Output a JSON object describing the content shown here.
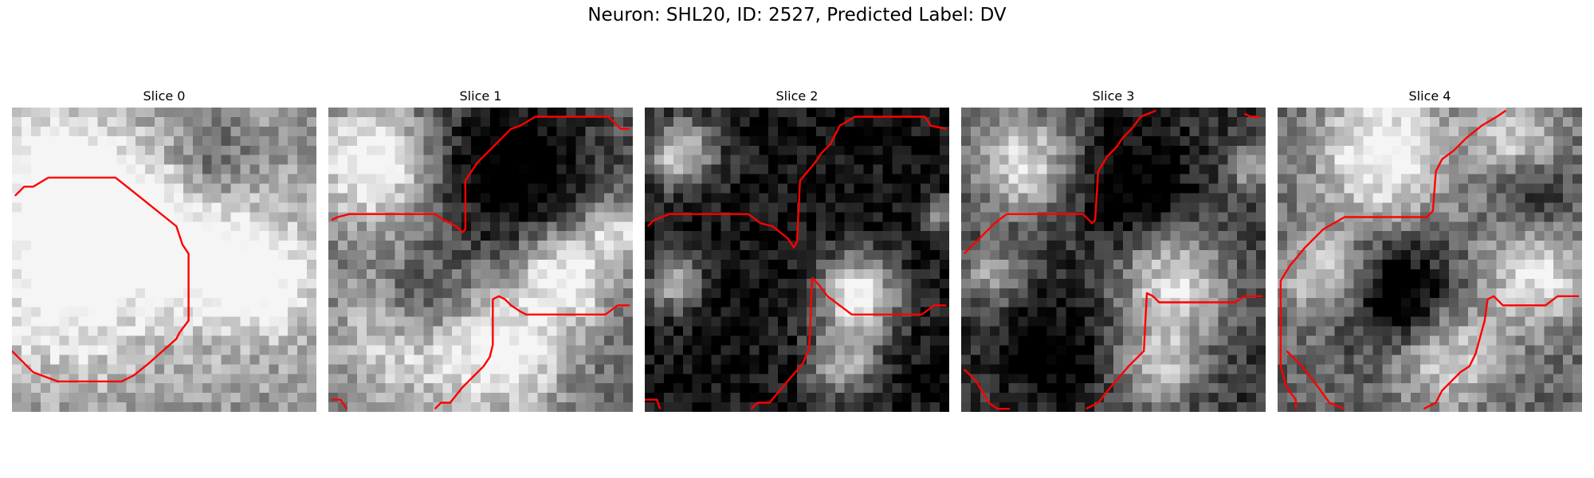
{
  "title": "Neuron: SHL20, ID: 2527, Predicted Label: DV",
  "outline_color": "#ff0000",
  "panels": [
    {
      "title": "Slice 0",
      "seed": 11,
      "bright_blobs": [
        [
          0.2,
          0.55,
          0.3,
          0.55
        ],
        [
          0.45,
          0.4,
          0.25,
          0.5
        ],
        [
          0.8,
          0.55,
          0.2,
          0.55
        ],
        [
          0.15,
          0.2,
          0.2,
          0.45
        ]
      ],
      "dark_blobs": [
        [
          0.65,
          0.18,
          0.14,
          0.3
        ],
        [
          0.35,
          0.65,
          0.12,
          0.18
        ]
      ],
      "base": 0.62,
      "polylines": [
        [
          [
            0.01,
            0.29
          ],
          [
            0.04,
            0.26
          ],
          [
            0.07,
            0.26
          ],
          [
            0.12,
            0.23
          ],
          [
            0.34,
            0.23
          ],
          [
            0.39,
            0.27
          ],
          [
            0.54,
            0.39
          ],
          [
            0.56,
            0.45
          ],
          [
            0.58,
            0.48
          ],
          [
            0.58,
            0.7
          ],
          [
            0.55,
            0.74
          ],
          [
            0.54,
            0.76
          ],
          [
            0.45,
            0.84
          ],
          [
            0.4,
            0.88
          ],
          [
            0.36,
            0.9
          ],
          [
            0.15,
            0.9
          ],
          [
            0.07,
            0.87
          ],
          [
            0.0,
            0.8
          ]
        ]
      ]
    },
    {
      "title": "Slice 1",
      "seed": 23,
      "bright_blobs": [
        [
          0.15,
          0.18,
          0.2,
          0.75
        ],
        [
          0.78,
          0.55,
          0.16,
          0.7
        ],
        [
          0.25,
          0.75,
          0.25,
          0.55
        ],
        [
          0.6,
          0.82,
          0.2,
          0.6
        ],
        [
          0.95,
          0.4,
          0.1,
          0.5
        ]
      ],
      "dark_blobs": [
        [
          0.6,
          0.2,
          0.28,
          0.55
        ],
        [
          0.3,
          0.65,
          0.14,
          0.45
        ]
      ],
      "base": 0.4,
      "polylines": [
        [
          [
            0.01,
            0.37
          ],
          [
            0.03,
            0.36
          ],
          [
            0.07,
            0.35
          ],
          [
            0.35,
            0.35
          ],
          [
            0.38,
            0.37
          ],
          [
            0.42,
            0.39
          ],
          [
            0.44,
            0.41
          ],
          [
            0.45,
            0.4
          ],
          [
            0.45,
            0.24
          ],
          [
            0.49,
            0.18
          ],
          [
            0.53,
            0.14
          ],
          [
            0.57,
            0.1
          ],
          [
            0.6,
            0.07
          ],
          [
            0.63,
            0.06
          ],
          [
            0.68,
            0.03
          ],
          [
            0.92,
            0.03
          ],
          [
            0.95,
            0.06
          ],
          [
            0.96,
            0.07
          ],
          [
            0.99,
            0.07
          ]
        ],
        [
          [
            0.35,
            0.99
          ],
          [
            0.37,
            0.97
          ],
          [
            0.4,
            0.97
          ],
          [
            0.44,
            0.92
          ],
          [
            0.51,
            0.85
          ],
          [
            0.53,
            0.82
          ],
          [
            0.54,
            0.78
          ],
          [
            0.54,
            0.63
          ],
          [
            0.56,
            0.62
          ],
          [
            0.58,
            0.63
          ],
          [
            0.6,
            0.65
          ],
          [
            0.63,
            0.67
          ],
          [
            0.65,
            0.68
          ],
          [
            0.69,
            0.68
          ],
          [
            0.91,
            0.68
          ],
          [
            0.95,
            0.65
          ],
          [
            0.99,
            0.65
          ]
        ],
        [
          [
            0.01,
            0.96
          ],
          [
            0.04,
            0.96
          ],
          [
            0.06,
            0.99
          ]
        ]
      ]
    },
    {
      "title": "Slice 2",
      "seed": 37,
      "bright_blobs": [
        [
          0.12,
          0.15,
          0.12,
          0.8
        ],
        [
          0.1,
          0.58,
          0.1,
          0.6
        ],
        [
          0.7,
          0.62,
          0.14,
          0.95
        ],
        [
          0.65,
          0.85,
          0.12,
          0.6
        ],
        [
          0.98,
          0.35,
          0.06,
          0.55
        ]
      ],
      "dark_blobs": [],
      "base": 0.06,
      "polylines": [
        [
          [
            0.01,
            0.39
          ],
          [
            0.03,
            0.37
          ],
          [
            0.08,
            0.35
          ],
          [
            0.34,
            0.35
          ],
          [
            0.38,
            0.38
          ],
          [
            0.42,
            0.39
          ],
          [
            0.47,
            0.43
          ],
          [
            0.49,
            0.46
          ],
          [
            0.5,
            0.44
          ],
          [
            0.51,
            0.24
          ],
          [
            0.56,
            0.18
          ],
          [
            0.58,
            0.15
          ],
          [
            0.61,
            0.12
          ],
          [
            0.64,
            0.06
          ],
          [
            0.69,
            0.03
          ],
          [
            0.92,
            0.03
          ],
          [
            0.94,
            0.06
          ],
          [
            0.99,
            0.07
          ]
        ],
        [
          [
            0.35,
            0.99
          ],
          [
            0.37,
            0.97
          ],
          [
            0.41,
            0.97
          ],
          [
            0.46,
            0.91
          ],
          [
            0.52,
            0.84
          ],
          [
            0.54,
            0.79
          ],
          [
            0.55,
            0.56
          ],
          [
            0.57,
            0.58
          ],
          [
            0.6,
            0.62
          ],
          [
            0.64,
            0.65
          ],
          [
            0.68,
            0.68
          ],
          [
            0.91,
            0.68
          ],
          [
            0.95,
            0.65
          ],
          [
            0.99,
            0.65
          ]
        ],
        [
          [
            0.0,
            0.96
          ],
          [
            0.04,
            0.96
          ],
          [
            0.05,
            0.99
          ]
        ]
      ]
    },
    {
      "title": "Slice 3",
      "seed": 41,
      "bright_blobs": [
        [
          0.2,
          0.18,
          0.18,
          0.7
        ],
        [
          0.1,
          0.55,
          0.1,
          0.45
        ],
        [
          0.7,
          0.58,
          0.18,
          0.7
        ],
        [
          0.65,
          0.85,
          0.14,
          0.55
        ],
        [
          0.95,
          0.2,
          0.08,
          0.45
        ]
      ],
      "dark_blobs": [
        [
          0.55,
          0.25,
          0.2,
          0.35
        ],
        [
          0.3,
          0.8,
          0.18,
          0.3
        ]
      ],
      "base": 0.22,
      "polylines": [
        [
          [
            0.01,
            0.48
          ],
          [
            0.05,
            0.44
          ],
          [
            0.08,
            0.41
          ],
          [
            0.11,
            0.38
          ],
          [
            0.15,
            0.35
          ],
          [
            0.4,
            0.35
          ],
          [
            0.43,
            0.38
          ],
          [
            0.44,
            0.37
          ],
          [
            0.45,
            0.21
          ],
          [
            0.48,
            0.16
          ],
          [
            0.51,
            0.13
          ],
          [
            0.53,
            0.1
          ],
          [
            0.56,
            0.07
          ],
          [
            0.59,
            0.03
          ],
          [
            0.64,
            0.01
          ]
        ],
        [
          [
            0.93,
            0.02
          ],
          [
            0.95,
            0.03
          ],
          [
            0.98,
            0.03
          ]
        ],
        [
          [
            0.41,
            0.99
          ],
          [
            0.45,
            0.97
          ],
          [
            0.49,
            0.92
          ],
          [
            0.55,
            0.85
          ],
          [
            0.6,
            0.8
          ],
          [
            0.61,
            0.61
          ],
          [
            0.63,
            0.62
          ],
          [
            0.65,
            0.64
          ],
          [
            0.67,
            0.64
          ],
          [
            0.9,
            0.64
          ],
          [
            0.93,
            0.62
          ],
          [
            0.99,
            0.62
          ]
        ],
        [
          [
            0.01,
            0.86
          ],
          [
            0.05,
            0.9
          ],
          [
            0.09,
            0.97
          ],
          [
            0.12,
            0.99
          ],
          [
            0.16,
            0.99
          ]
        ]
      ]
    },
    {
      "title": "Slice 4",
      "seed": 53,
      "bright_blobs": [
        [
          0.35,
          0.15,
          0.22,
          0.7
        ],
        [
          0.85,
          0.55,
          0.18,
          0.55
        ],
        [
          0.15,
          0.55,
          0.15,
          0.45
        ],
        [
          0.55,
          0.82,
          0.18,
          0.5
        ],
        [
          0.8,
          0.1,
          0.15,
          0.45
        ]
      ],
      "dark_blobs": [
        [
          0.4,
          0.62,
          0.18,
          0.6
        ],
        [
          0.85,
          0.28,
          0.12,
          0.35
        ]
      ],
      "base": 0.4,
      "polylines": [
        [
          [
            0.06,
            0.99
          ],
          [
            0.06,
            0.96
          ],
          [
            0.03,
            0.92
          ],
          [
            0.01,
            0.85
          ],
          [
            0.01,
            0.57
          ],
          [
            0.04,
            0.52
          ],
          [
            0.09,
            0.46
          ],
          [
            0.15,
            0.4
          ],
          [
            0.22,
            0.36
          ],
          [
            0.49,
            0.36
          ],
          [
            0.51,
            0.34
          ],
          [
            0.52,
            0.21
          ],
          [
            0.54,
            0.17
          ],
          [
            0.58,
            0.14
          ],
          [
            0.62,
            0.1
          ],
          [
            0.67,
            0.06
          ],
          [
            0.72,
            0.03
          ],
          [
            0.75,
            0.01
          ]
        ],
        [
          [
            0.48,
            0.99
          ],
          [
            0.52,
            0.97
          ],
          [
            0.54,
            0.93
          ],
          [
            0.6,
            0.87
          ],
          [
            0.63,
            0.85
          ],
          [
            0.65,
            0.81
          ],
          [
            0.68,
            0.7
          ],
          [
            0.69,
            0.63
          ],
          [
            0.71,
            0.62
          ],
          [
            0.73,
            0.64
          ],
          [
            0.74,
            0.65
          ],
          [
            0.88,
            0.65
          ],
          [
            0.92,
            0.62
          ],
          [
            0.99,
            0.62
          ]
        ],
        [
          [
            0.03,
            0.8
          ],
          [
            0.08,
            0.85
          ],
          [
            0.12,
            0.9
          ],
          [
            0.17,
            0.97
          ],
          [
            0.22,
            0.99
          ]
        ]
      ]
    }
  ]
}
